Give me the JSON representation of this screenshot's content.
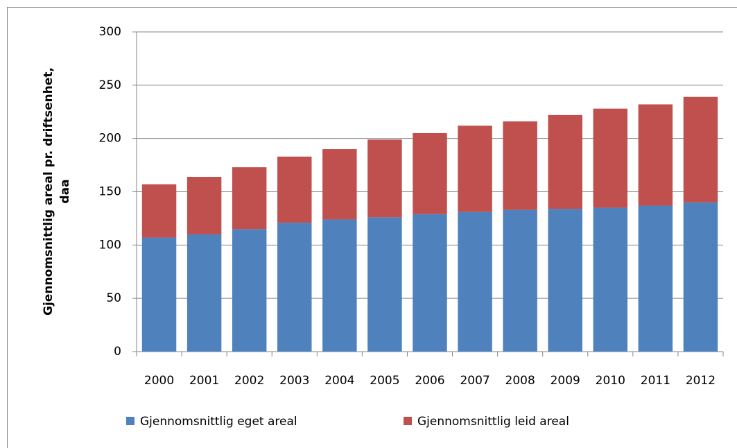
{
  "chart_data": {
    "type": "stacked_bar",
    "y_label": [
      "Gjennomsnittlig areal pr. driftsenhet,",
      "daa"
    ],
    "categories": [
      "2000",
      "2001",
      "2002",
      "2003",
      "2004",
      "2005",
      "2006",
      "2007",
      "2008",
      "2009",
      "2010",
      "2011",
      "2012"
    ],
    "series": [
      {
        "name": "Gjennomsnittlig eget areal",
        "color": "#4f81bd",
        "values": [
          107,
          110,
          115,
          121,
          124,
          126,
          129,
          131,
          133,
          134,
          135,
          137,
          140
        ]
      },
      {
        "name": "Gjennomsnittlig leid areal",
        "color": "#c0504d",
        "values": [
          50,
          54,
          58,
          62,
          66,
          73,
          76,
          81,
          83,
          88,
          93,
          95,
          99
        ]
      }
    ],
    "ylim": [
      0,
      300
    ],
    "yticks": [
      0,
      50,
      100,
      150,
      200,
      250,
      300
    ],
    "grid": true,
    "legend": "bottom"
  }
}
